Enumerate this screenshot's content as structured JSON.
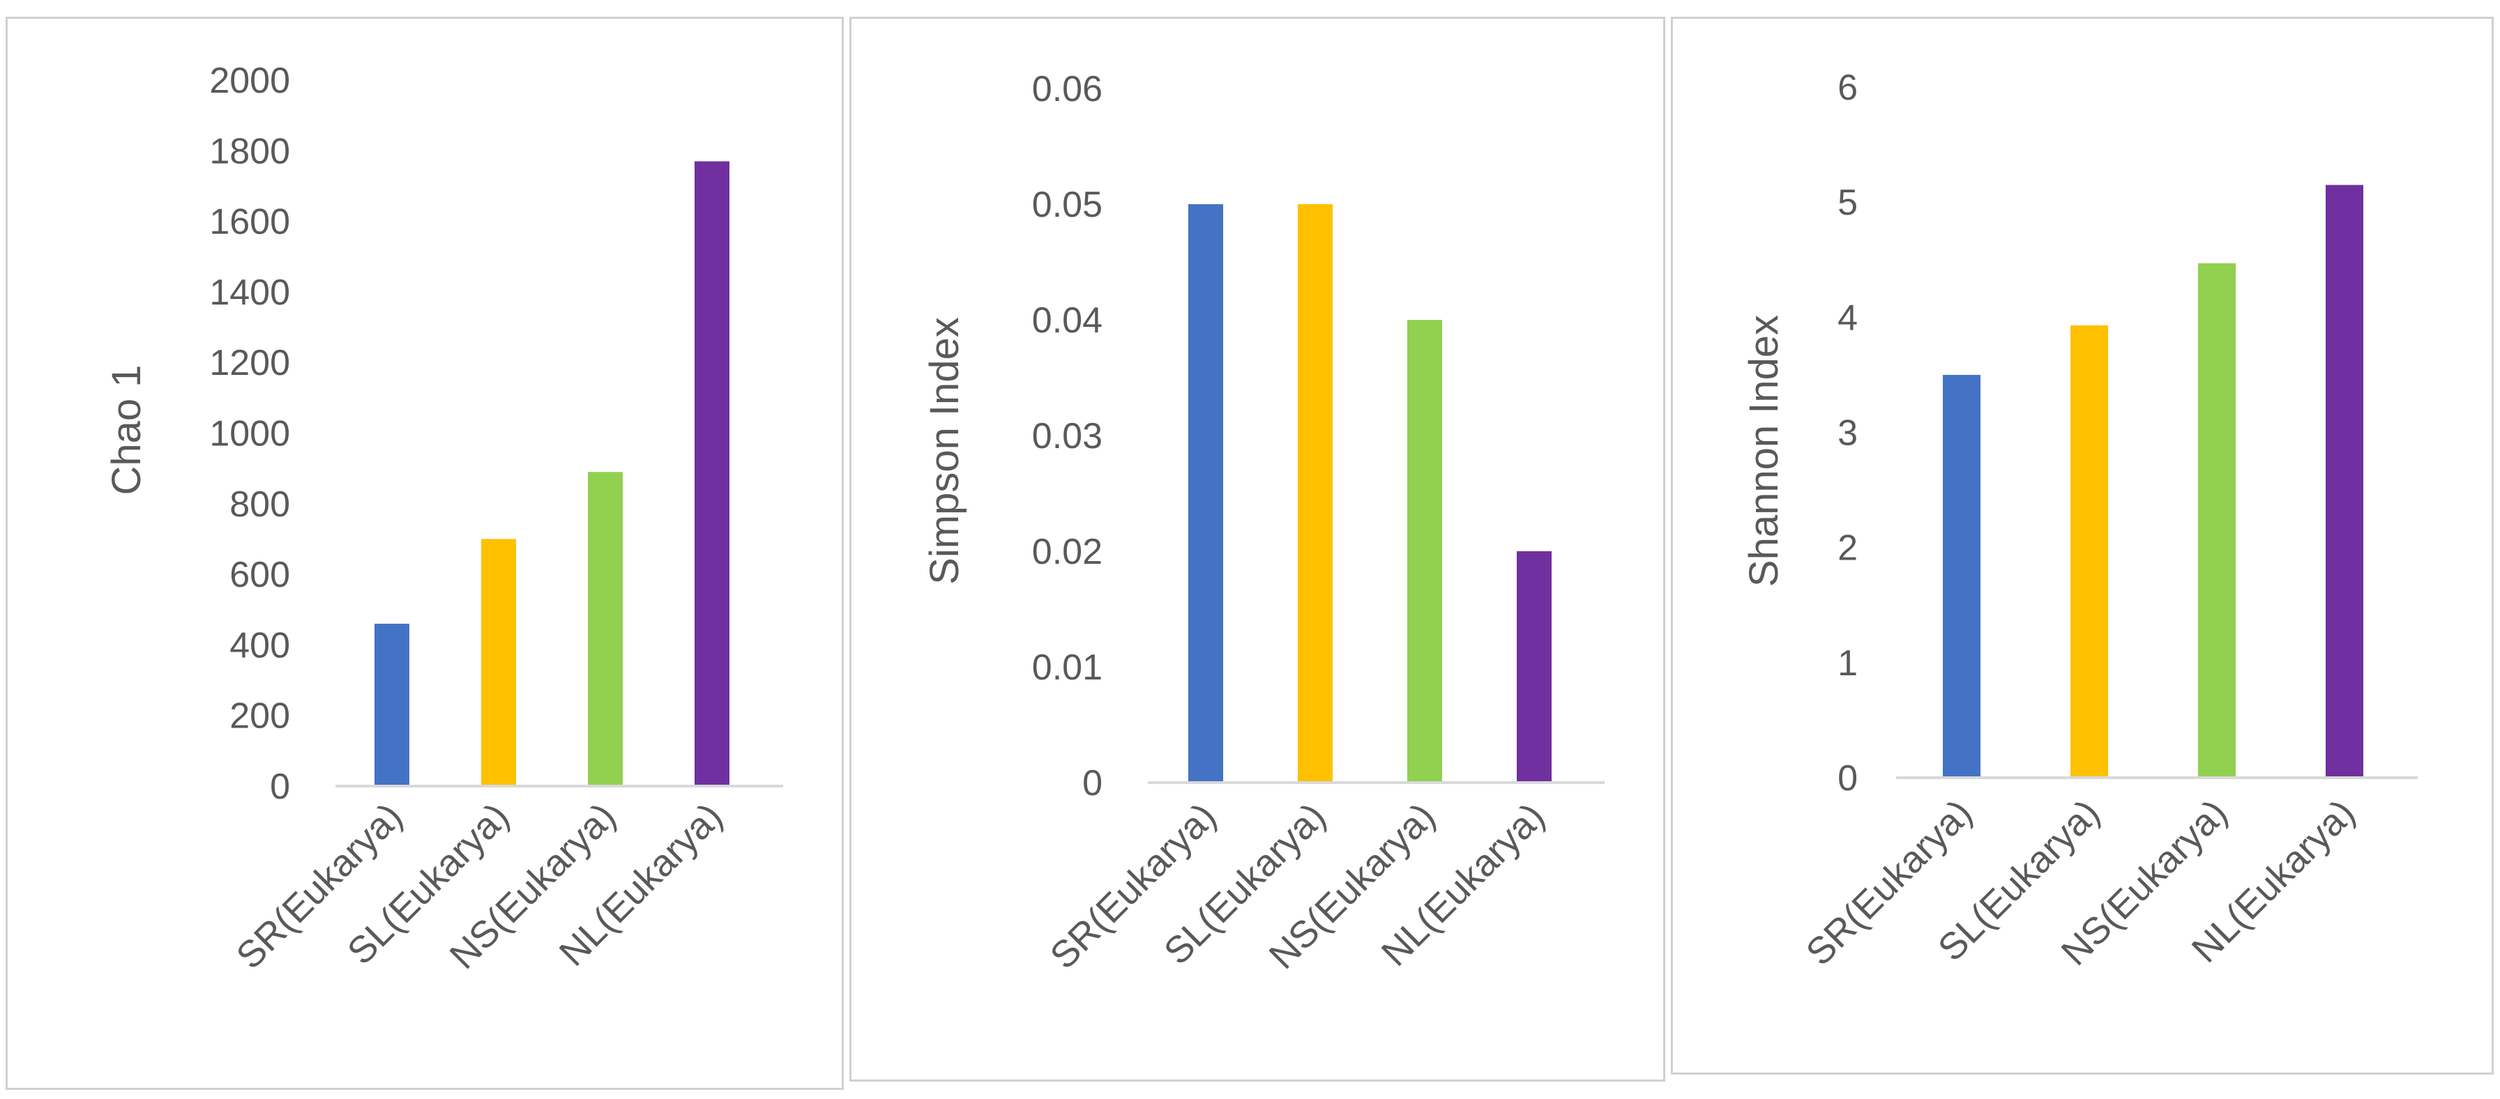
{
  "chart_data": [
    {
      "type": "bar",
      "title": "",
      "xlabel": "",
      "ylabel": "Chao 1",
      "categories": [
        "SR(Eukarya)",
        "SL(Eukarya)",
        "NS(Eukarya)",
        "NL(Eukarya)"
      ],
      "values": [
        460,
        700,
        890,
        1770
      ],
      "colors": [
        "#4472C4",
        "#FFC000",
        "#92D050",
        "#7030A0"
      ],
      "ylim": [
        0,
        2000
      ],
      "yticks": [
        "0",
        "200",
        "400",
        "600",
        "800",
        "1000",
        "1200",
        "1400",
        "1600",
        "1800",
        "2000"
      ],
      "grid": false,
      "legend": "none"
    },
    {
      "type": "bar",
      "title": "",
      "xlabel": "",
      "ylabel": "Simpson Index",
      "categories": [
        "SR(Eukarya)",
        "SL(Eukarya)",
        "NS(Eukarya)",
        "NL(Eukarya)"
      ],
      "values": [
        0.05,
        0.05,
        0.04,
        0.02
      ],
      "colors": [
        "#4472C4",
        "#FFC000",
        "#92D050",
        "#7030A0"
      ],
      "ylim": [
        0,
        0.06
      ],
      "yticks": [
        "0",
        "0.01",
        "0.02",
        "0.03",
        "0.04",
        "0.05",
        "0.06"
      ],
      "grid": false,
      "legend": "none"
    },
    {
      "type": "bar",
      "title": "",
      "xlabel": "",
      "ylabel": "Shannon Index",
      "categories": [
        "SR(Eukarya)",
        "SL(Eukarya)",
        "NS(Eukarya)",
        "NL(Eukarya)"
      ],
      "values": [
        3.5,
        3.93,
        4.47,
        5.15
      ],
      "colors": [
        "#4472C4",
        "#FFC000",
        "#92D050",
        "#7030A0"
      ],
      "ylim": [
        0,
        6
      ],
      "yticks": [
        "0",
        "1",
        "2",
        "3",
        "4",
        "5",
        "6"
      ],
      "grid": false,
      "legend": "none"
    }
  ]
}
